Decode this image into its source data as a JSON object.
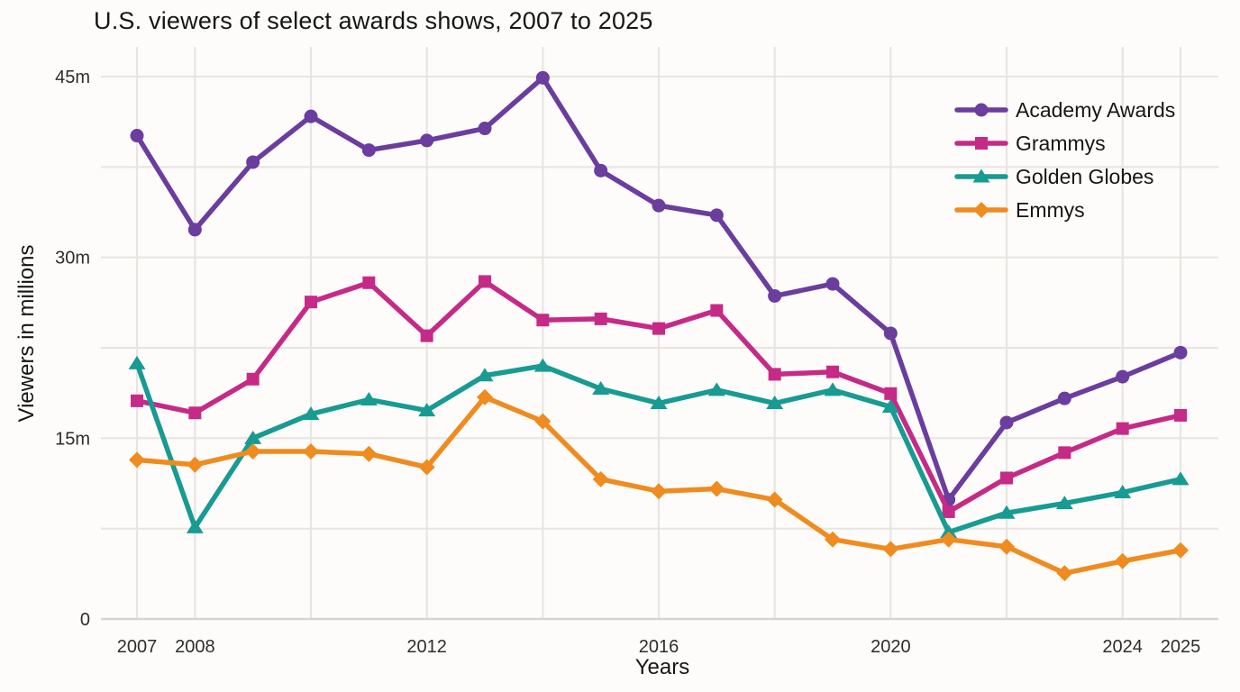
{
  "chart_data": {
    "type": "line",
    "title": "U.S. viewers of select awards shows, 2007 to 2025",
    "xlabel": "Years",
    "ylabel": "Viewers in millions",
    "x": [
      2007,
      2008,
      2009,
      2010,
      2011,
      2012,
      2013,
      2014,
      2015,
      2016,
      2017,
      2018,
      2019,
      2020,
      2021,
      2022,
      2023,
      2024,
      2025
    ],
    "x_major_ticks": [
      2007,
      2008,
      2012,
      2016,
      2020,
      2024,
      2025
    ],
    "x_minor_gridlines": [
      2010,
      2014,
      2018,
      2022
    ],
    "y_ticks": [
      {
        "value": 0,
        "label": "0"
      },
      {
        "value": 15,
        "label": "15m"
      },
      {
        "value": 30,
        "label": "30m"
      },
      {
        "value": 45,
        "label": "45m"
      }
    ],
    "y_minor_gridlines": [
      7.5,
      22.5,
      37.5
    ],
    "ylim": [
      0,
      47
    ],
    "grid": true,
    "legend_position": "upper right",
    "series": [
      {
        "name": "Academy Awards",
        "color": "#6a3d9e",
        "marker": "circle",
        "values": [
          40.1,
          32.3,
          37.9,
          41.7,
          38.9,
          39.7,
          40.7,
          44.9,
          37.2,
          34.3,
          33.5,
          26.8,
          27.8,
          23.7,
          9.9,
          16.3,
          18.3,
          20.1,
          22.1
        ]
      },
      {
        "name": "Grammys",
        "color": "#c62a87",
        "marker": "square",
        "values": [
          18.1,
          17.1,
          19.9,
          26.3,
          27.9,
          23.5,
          28.0,
          24.8,
          24.9,
          24.1,
          25.6,
          20.3,
          20.5,
          18.7,
          8.9,
          11.7,
          13.8,
          15.8,
          16.9
        ]
      },
      {
        "name": "Golden Globes",
        "color": "#179b92",
        "marker": "triangle",
        "values": [
          21.2,
          7.6,
          15.0,
          17.0,
          18.2,
          17.3,
          20.2,
          21.0,
          19.1,
          17.9,
          19.0,
          17.9,
          19.0,
          17.6,
          7.2,
          8.8,
          9.6,
          10.5,
          11.6
        ]
      },
      {
        "name": "Emmys",
        "color": "#ef8b1f",
        "marker": "diamond",
        "values": [
          13.2,
          12.8,
          13.9,
          13.9,
          13.7,
          12.6,
          18.4,
          16.4,
          11.6,
          10.6,
          10.8,
          9.9,
          6.6,
          5.8,
          6.6,
          6.0,
          3.8,
          4.8,
          5.7
        ]
      }
    ],
    "colors": {
      "grid": "#e8e5e1",
      "axis_line": "#d8d5d0",
      "tick_text": "#2d2d2d",
      "text": "#161616",
      "background": "#fdfcfa"
    }
  }
}
